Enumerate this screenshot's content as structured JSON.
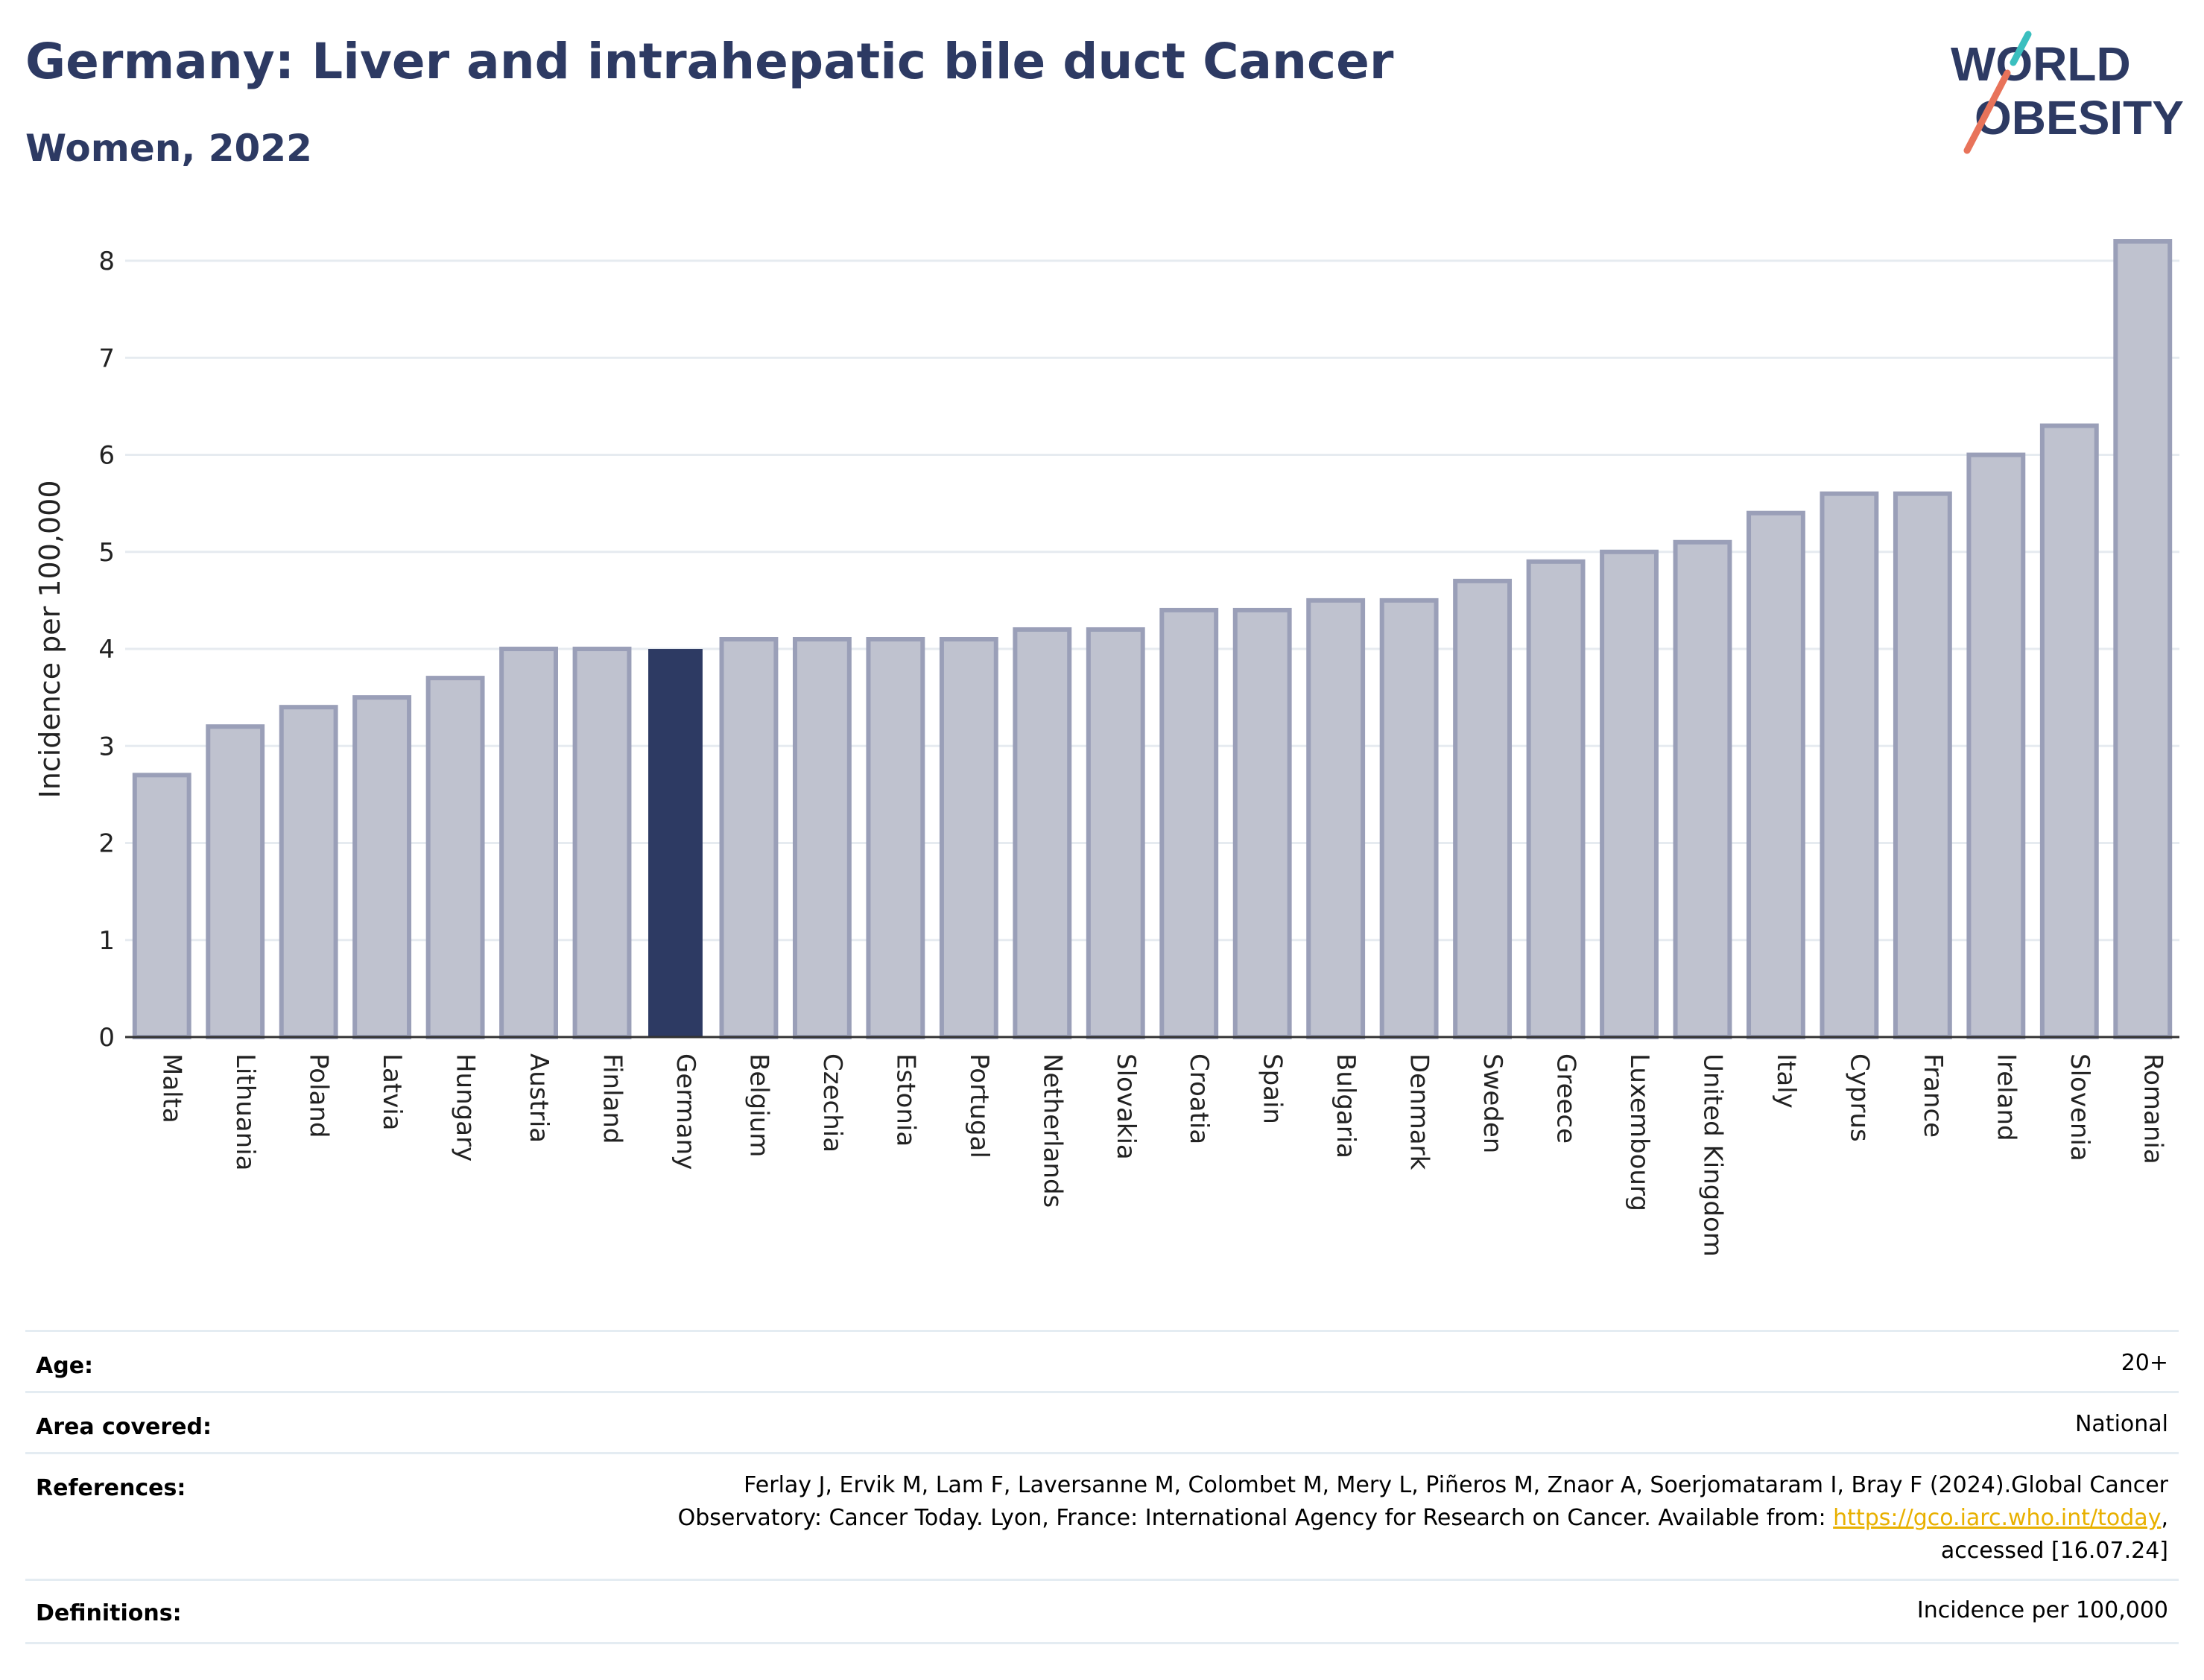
{
  "header": {
    "title": "Germany: Liver and intrahepatic bile duct Cancer",
    "subtitle": "Women, 2022"
  },
  "logo": {
    "line1": "WORLD",
    "line2": "OBESITY",
    "text_color": "#2d3a63",
    "slash_colors": [
      "#e8735a",
      "#3bbfbf"
    ]
  },
  "chart_data": {
    "type": "bar",
    "ylabel": "Incidence per 100,000",
    "xlabel": "",
    "ylim": [
      0,
      8.2
    ],
    "yticks": [
      0,
      1,
      2,
      3,
      4,
      5,
      6,
      7,
      8
    ],
    "grid": true,
    "highlight": "Germany",
    "colors": {
      "bar": "#bfc2cf",
      "bar_border": "#9a9fb8",
      "highlight": "#2d3a63"
    },
    "categories": [
      "Malta",
      "Lithuania",
      "Poland",
      "Latvia",
      "Hungary",
      "Austria",
      "Finland",
      "Germany",
      "Belgium",
      "Czechia",
      "Estonia",
      "Portugal",
      "Netherlands",
      "Slovakia",
      "Croatia",
      "Spain",
      "Bulgaria",
      "Denmark",
      "Sweden",
      "Greece",
      "Luxembourg",
      "United Kingdom",
      "Italy",
      "Cyprus",
      "France",
      "Ireland",
      "Slovenia",
      "Romania"
    ],
    "values": [
      2.7,
      3.2,
      3.4,
      3.5,
      3.7,
      4.0,
      4.0,
      4.0,
      4.1,
      4.1,
      4.1,
      4.1,
      4.2,
      4.2,
      4.4,
      4.4,
      4.5,
      4.5,
      4.7,
      4.9,
      5.0,
      5.1,
      5.4,
      5.6,
      5.6,
      6.0,
      6.3,
      8.2
    ]
  },
  "info": {
    "age_label": "Age:",
    "age_value": "20+",
    "area_label": "Area covered:",
    "area_value": "National",
    "references_label": "References:",
    "references_line1": "Ferlay J, Ervik M, Lam F, Laversanne M, Colombet M, Mery L, Piñeros M, Znaor A, Soerjomataram I, Bray F (2024).Global Cancer",
    "references_line2": "Observatory: Cancer Today. Lyon, France: International Agency for Research on Cancer. Available from: ",
    "references_link": "https://gco.iarc.who.int/today",
    "references_line2_end": ",",
    "references_line3": "accessed [16.07.24]",
    "definitions_label": "Definitions:",
    "definitions_value": "Incidence per 100,000"
  }
}
